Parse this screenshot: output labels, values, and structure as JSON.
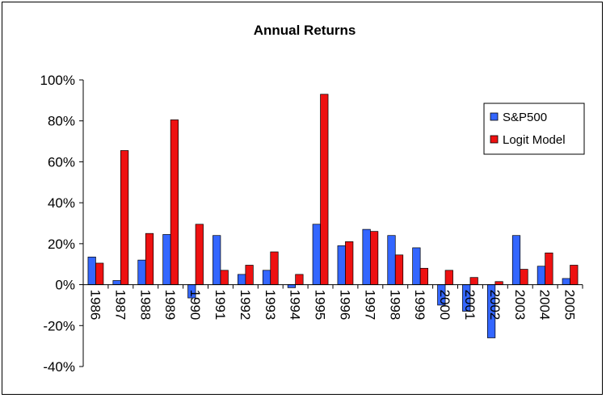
{
  "chart_data": {
    "type": "bar",
    "title": "Annual Returns",
    "xlabel": "",
    "ylabel": "",
    "ylim": [
      -40,
      100
    ],
    "yticks": [
      -40,
      -20,
      0,
      20,
      40,
      60,
      80,
      100
    ],
    "ytick_format": "%",
    "grid": false,
    "legend_position": "right",
    "categories": [
      "1986",
      "1987",
      "1988",
      "1989",
      "1990",
      "1991",
      "1992",
      "1993",
      "1994",
      "1995",
      "1996",
      "1997",
      "1998",
      "1999",
      "2000",
      "2001",
      "2002",
      "2003",
      "2004",
      "2005"
    ],
    "series": [
      {
        "name": "S&P500",
        "color": "#3366ff",
        "values": [
          13.5,
          2,
          12,
          24.5,
          -6.5,
          24,
          5,
          7,
          -1.5,
          29.5,
          19,
          27,
          24,
          18,
          -10,
          -13,
          -26,
          24,
          9,
          3
        ]
      },
      {
        "name": "Logit Model",
        "color": "#ee1111",
        "values": [
          10.5,
          65.5,
          25,
          80.5,
          29.5,
          7,
          9.5,
          16,
          5,
          93,
          21,
          26,
          14.5,
          8,
          7,
          3.5,
          1.5,
          7.5,
          15.5,
          9.5
        ]
      }
    ]
  }
}
